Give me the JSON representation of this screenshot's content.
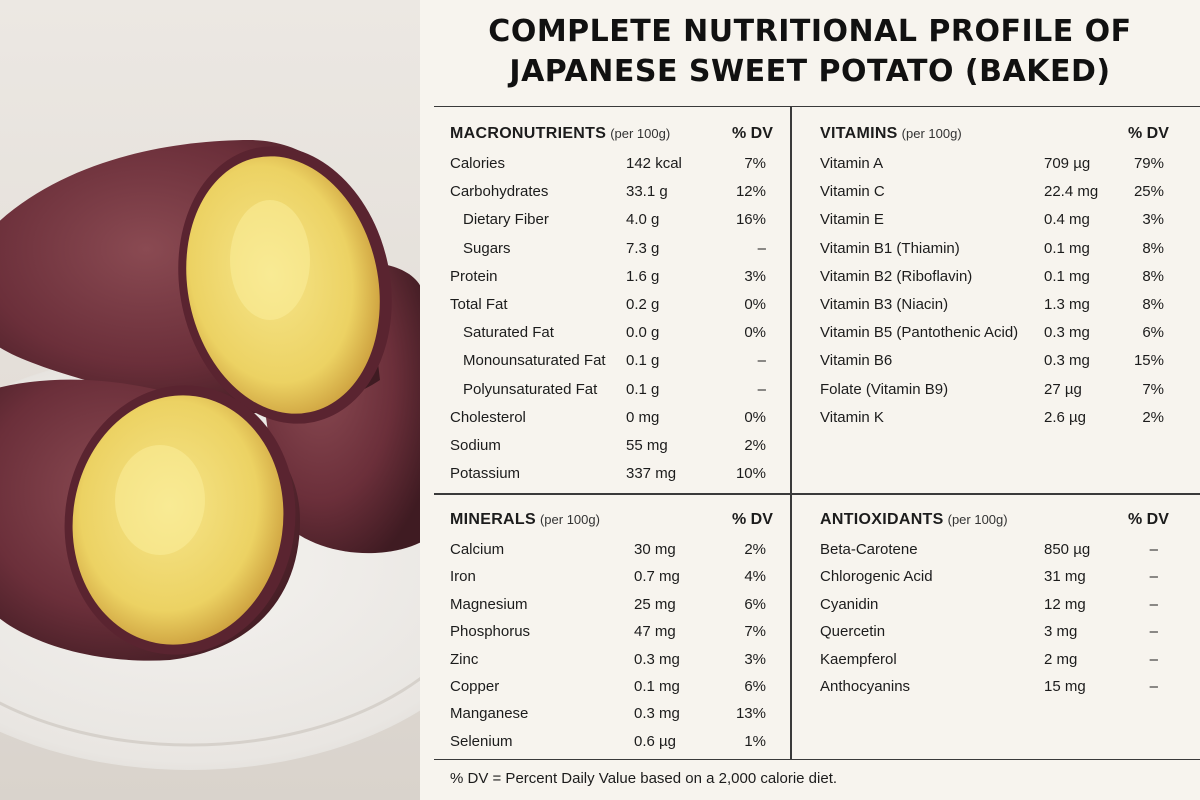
{
  "title": {
    "line1": "COMPLETE NUTRITIONAL PROFILE OF",
    "line2": "JAPANESE SWEET POTATO (BAKED)"
  },
  "photo": {
    "icon": "baked-sweet-potato-photo"
  },
  "macronutrients": {
    "heading": "MACRONUTRIENTS",
    "sub": "(per 100g)",
    "dv_header": "% DV",
    "rows": [
      {
        "name": "Calories",
        "amount": "142 kcal",
        "dv": "7%",
        "indent": false
      },
      {
        "name": "Carbohydrates",
        "amount": "33.1 g",
        "dv": "12%",
        "indent": false
      },
      {
        "name": "Dietary Fiber",
        "amount": "4.0 g",
        "dv": "16%",
        "indent": true
      },
      {
        "name": "Sugars",
        "amount": "7.3 g",
        "dv": "–",
        "indent": true
      },
      {
        "name": "Protein",
        "amount": "1.6 g",
        "dv": "3%",
        "indent": false
      },
      {
        "name": "Total Fat",
        "amount": "0.2 g",
        "dv": "0%",
        "indent": false
      },
      {
        "name": "Saturated Fat",
        "amount": "0.0 g",
        "dv": "0%",
        "indent": true
      },
      {
        "name": "Monounsaturated Fat",
        "amount": "0.1 g",
        "dv": "–",
        "indent": true
      },
      {
        "name": "Polyunsaturated Fat",
        "amount": "0.1 g",
        "dv": "–",
        "indent": true
      },
      {
        "name": "Cholesterol",
        "amount": "0 mg",
        "dv": "0%",
        "indent": false
      },
      {
        "name": "Sodium",
        "amount": "55 mg",
        "dv": "2%",
        "indent": false
      },
      {
        "name": "Potassium",
        "amount": "337 mg",
        "dv": "10%",
        "indent": false
      }
    ]
  },
  "vitamins": {
    "heading": "VITAMINS",
    "sub": "(per 100g)",
    "dv_header": "% DV",
    "rows": [
      {
        "name": "Vitamin A",
        "amount": "709 µg",
        "dv": "79%"
      },
      {
        "name": "Vitamin C",
        "amount": "22.4 mg",
        "dv": "25%"
      },
      {
        "name": "Vitamin E",
        "amount": "0.4 mg",
        "dv": "3%"
      },
      {
        "name": "Vitamin B1 (Thiamin)",
        "amount": "0.1 mg",
        "dv": "8%"
      },
      {
        "name": "Vitamin B2 (Riboflavin)",
        "amount": "0.1 mg",
        "dv": "8%"
      },
      {
        "name": "Vitamin B3 (Niacin)",
        "amount": "1.3 mg",
        "dv": "8%"
      },
      {
        "name": "Vitamin B5 (Pantothenic Acid)",
        "amount": "0.3 mg",
        "dv": "6%"
      },
      {
        "name": "Vitamin B6",
        "amount": "0.3 mg",
        "dv": "15%"
      },
      {
        "name": "Folate (Vitamin B9)",
        "amount": "27 µg",
        "dv": "7%"
      },
      {
        "name": "Vitamin K",
        "amount": "2.6 µg",
        "dv": "2%"
      }
    ]
  },
  "minerals": {
    "heading": "MINERALS",
    "sub": "(per 100g)",
    "dv_header": "% DV",
    "rows": [
      {
        "name": "Calcium",
        "amount": "30 mg",
        "dv": "2%"
      },
      {
        "name": "Iron",
        "amount": "0.7 mg",
        "dv": "4%"
      },
      {
        "name": "Magnesium",
        "amount": "25 mg",
        "dv": "6%"
      },
      {
        "name": "Phosphorus",
        "amount": "47 mg",
        "dv": "7%"
      },
      {
        "name": "Zinc",
        "amount": "0.3 mg",
        "dv": "3%"
      },
      {
        "name": "Copper",
        "amount": "0.1 mg",
        "dv": "6%"
      },
      {
        "name": "Manganese",
        "amount": "0.3 mg",
        "dv": "13%"
      },
      {
        "name": "Selenium",
        "amount": "0.6 µg",
        "dv": "1%"
      }
    ]
  },
  "antioxidants": {
    "heading": "ANTIOXIDANTS",
    "sub": "(per 100g)",
    "dv_header": "% DV",
    "rows": [
      {
        "name": "Beta-Carotene",
        "amount": "850 µg",
        "dv": "–"
      },
      {
        "name": "Chlorogenic Acid",
        "amount": "31 mg",
        "dv": "–"
      },
      {
        "name": "Cyanidin",
        "amount": "12 mg",
        "dv": "–"
      },
      {
        "name": "Quercetin",
        "amount": "3 mg",
        "dv": "–"
      },
      {
        "name": "Kaempferol",
        "amount": "2 mg",
        "dv": "–"
      },
      {
        "name": "Anthocyanins",
        "amount": "15 mg",
        "dv": "–"
      }
    ]
  },
  "footnote": "% DV = Percent Daily Value based on a 2,000 calorie diet."
}
